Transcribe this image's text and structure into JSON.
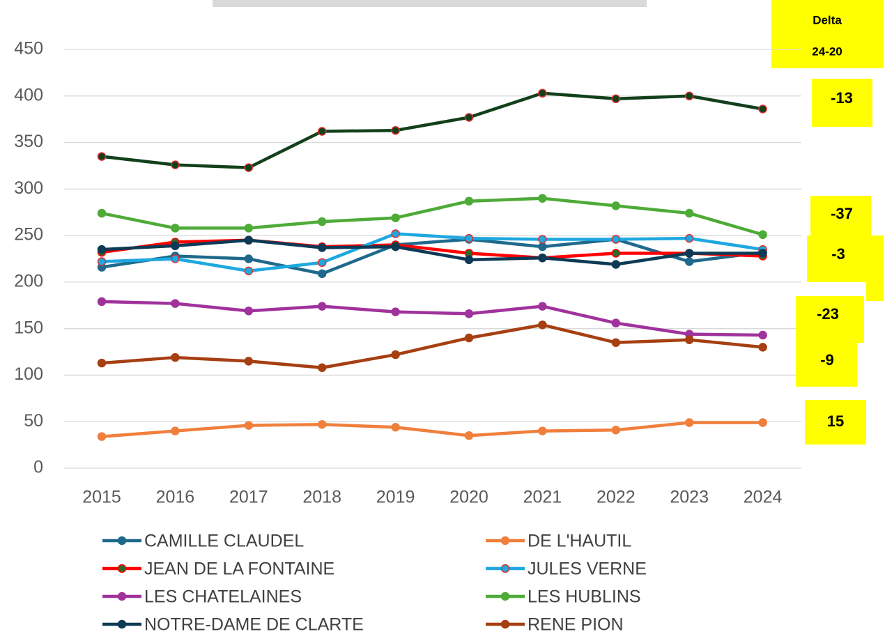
{
  "chart_data": {
    "type": "line",
    "categories": [
      "2015",
      "2016",
      "2017",
      "2018",
      "2019",
      "2020",
      "2021",
      "2022",
      "2023",
      "2024"
    ],
    "ylim": [
      0,
      450
    ],
    "yticks": [
      0,
      50,
      100,
      150,
      200,
      250,
      300,
      350,
      400,
      450
    ],
    "grid": true,
    "series": [
      {
        "name": "CAMILLE CLAUDEL",
        "color": "#1f6a8c",
        "values": [
          216,
          228,
          225,
          209,
          240,
          246,
          238,
          246,
          222,
          232
        ]
      },
      {
        "name": "DE L'HAUTIL",
        "color": "#f07f3c",
        "values": [
          34,
          40,
          46,
          47,
          44,
          35,
          40,
          41,
          49,
          49
        ]
      },
      {
        "name": "JEAN DE LA FONTAINE",
        "color": "#ff0000",
        "marker_color": "#2e6b2a",
        "marker_edge": "#ff0000",
        "values": [
          232,
          243,
          245,
          238,
          240,
          231,
          226,
          231,
          231,
          228
        ]
      },
      {
        "name": "JULES VERNE",
        "color": "#1fa8e0",
        "marker_edge": "#e03030",
        "values": [
          222,
          225,
          212,
          221,
          252,
          247,
          246,
          246,
          247,
          235
        ]
      },
      {
        "name": "LES CHATELAINES",
        "color": "#a0329c",
        "values": [
          179,
          177,
          169,
          174,
          168,
          166,
          174,
          156,
          144,
          143
        ]
      },
      {
        "name": "LES HUBLINS",
        "color": "#4eab38",
        "values": [
          274,
          258,
          258,
          265,
          269,
          287,
          290,
          282,
          274,
          251
        ]
      },
      {
        "name": "NOTRE-DAME DE CLARTE",
        "color": "#0d3a55",
        "values": [
          235,
          239,
          245,
          237,
          238,
          224,
          226,
          219,
          231,
          231
        ]
      },
      {
        "name": "RENE PION",
        "color": "#a63f12",
        "values": [
          113,
          119,
          115,
          108,
          122,
          140,
          154,
          135,
          138,
          130
        ]
      },
      {
        "color": "#12401b",
        "marker_edge": "#e03030",
        "values": [
          335,
          326,
          323,
          362,
          363,
          377,
          403,
          397,
          400,
          386
        ]
      }
    ],
    "delta_header": [
      "Delta",
      "24-20"
    ],
    "deltas": [
      -13,
      -37,
      -3,
      -23,
      -9,
      15
    ]
  }
}
